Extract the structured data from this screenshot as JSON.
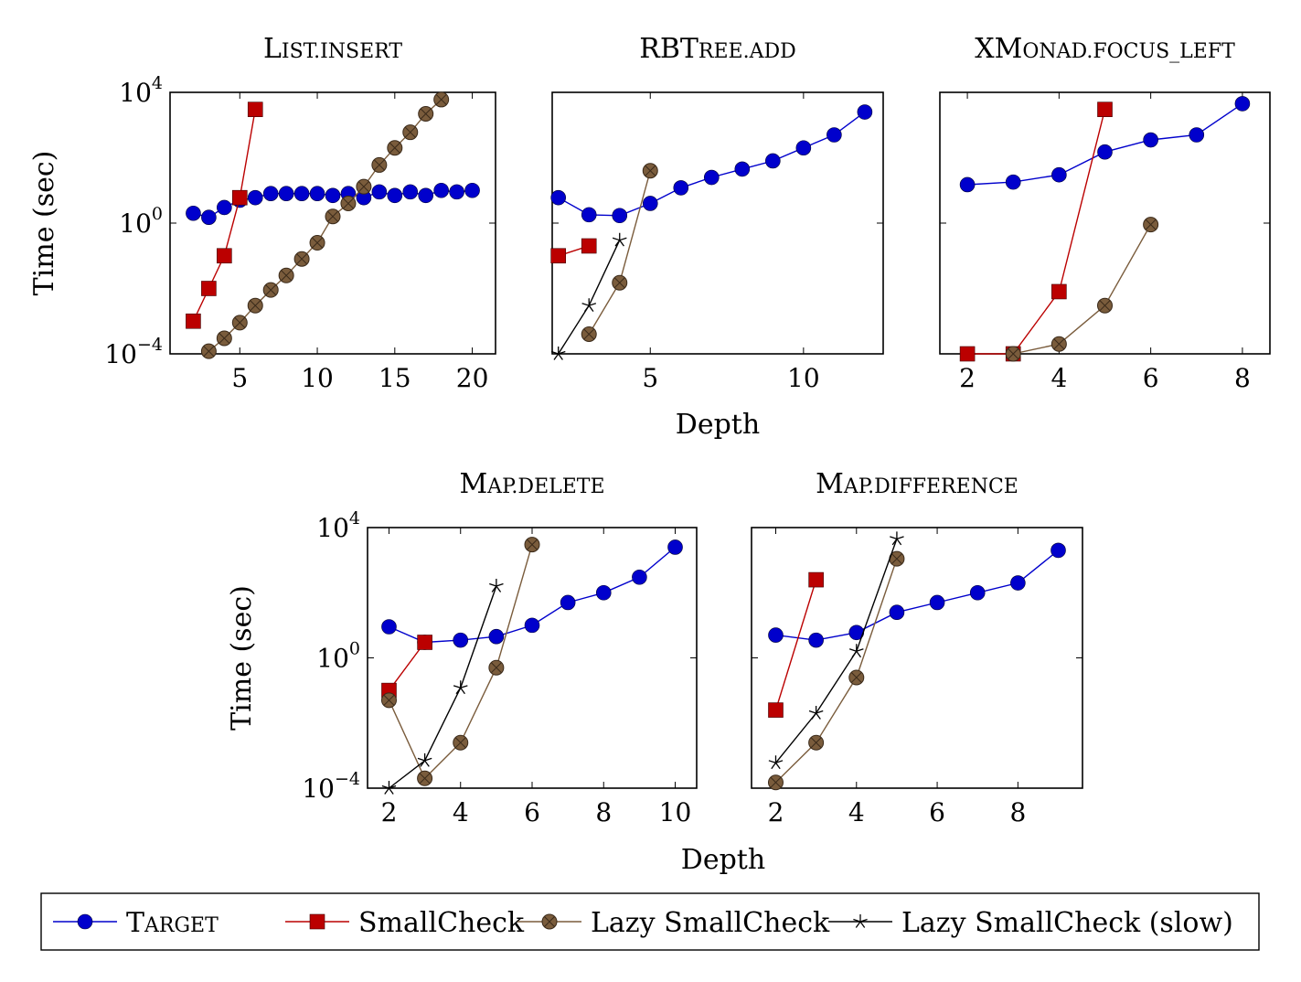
{
  "series_styles": [
    {
      "name": "Target",
      "color": "#0000cc",
      "marker": "circle"
    },
    {
      "name": "SmallCheck",
      "color": "#bb0000",
      "marker": "square"
    },
    {
      "name": "Lazy SmallCheck",
      "color": "#7a5c3c",
      "marker": "xcircle"
    },
    {
      "name": "Lazy SmallCheck (slow)",
      "color": "#000000",
      "marker": "star"
    }
  ],
  "legend": {
    "placement": "bottom",
    "entries": [
      "Target",
      "SmallCheck",
      "Lazy SmallCheck",
      "Lazy SmallCheck (slow)"
    ]
  },
  "chart_data": [
    {
      "type": "line",
      "title": "List.insert",
      "xlabel": "",
      "ylabel": "Time (sec)",
      "y_scale": "log",
      "xlim": [
        0.5,
        21.5
      ],
      "ylim": [
        0.0001,
        10000
      ],
      "xticks": [
        5,
        10,
        15,
        20
      ],
      "yticks": [
        {
          "value": 0.0001,
          "base": "10",
          "exp": "−4"
        },
        {
          "value": 1,
          "base": "10",
          "exp": "0"
        },
        {
          "value": 10000,
          "base": "10",
          "exp": "4"
        }
      ],
      "series": [
        {
          "name": "Target",
          "x": [
            2,
            3,
            4,
            5,
            6,
            7,
            8,
            9,
            10,
            11,
            12,
            13,
            14,
            15,
            16,
            17,
            18,
            19,
            20
          ],
          "y": [
            2,
            1.5,
            3,
            5,
            6,
            8,
            8,
            8,
            8,
            7,
            8,
            6,
            9,
            7,
            9,
            7,
            10,
            9,
            10
          ]
        },
        {
          "name": "SmallCheck",
          "x": [
            2,
            3,
            4,
            5,
            6
          ],
          "y": [
            0.001,
            0.01,
            0.1,
            6,
            3000
          ]
        },
        {
          "name": "Lazy SmallCheck",
          "x": [
            3,
            4,
            5,
            6,
            7,
            8,
            9,
            10,
            11,
            12,
            13,
            14,
            15,
            16,
            17,
            18
          ],
          "y": [
            0.00012,
            0.0003,
            0.0009,
            0.003,
            0.009,
            0.025,
            0.08,
            0.25,
            1.6,
            4,
            13,
            60,
            200,
            600,
            2200,
            6000
          ]
        }
      ]
    },
    {
      "type": "line",
      "title": "RBTree.add",
      "xlabel": "",
      "ylabel": "",
      "y_scale": "log",
      "xlim": [
        1.8,
        12.6
      ],
      "ylim": [
        0.0001,
        10000
      ],
      "xticks": [
        5,
        10
      ],
      "yticks": [
        {
          "value": 0.0001,
          "base": "",
          "exp": ""
        },
        {
          "value": 1,
          "base": "",
          "exp": ""
        },
        {
          "value": 10000,
          "base": "",
          "exp": ""
        }
      ],
      "series": [
        {
          "name": "Target",
          "x": [
            2,
            3,
            4,
            5,
            6,
            7,
            8,
            9,
            10,
            11,
            12
          ],
          "y": [
            6,
            1.8,
            1.7,
            4,
            12,
            25,
            45,
            80,
            200,
            500,
            2500
          ]
        },
        {
          "name": "SmallCheck",
          "x": [
            2,
            3
          ],
          "y": [
            0.1,
            0.2
          ]
        },
        {
          "name": "Lazy SmallCheck",
          "x": [
            3,
            4,
            5
          ],
          "y": [
            0.0004,
            0.015,
            40
          ]
        },
        {
          "name": "Lazy SmallCheck (slow)",
          "x": [
            2,
            3,
            4
          ],
          "y": [
            0.0001,
            0.003,
            0.3
          ]
        }
      ]
    },
    {
      "type": "line",
      "title": "XMonad.focus_left",
      "xlabel": "",
      "ylabel": "",
      "y_scale": "log",
      "xlim": [
        1.4,
        8.6
      ],
      "ylim": [
        0.0001,
        10000
      ],
      "xticks": [
        2,
        4,
        6,
        8
      ],
      "yticks": [
        {
          "value": 0.0001,
          "base": "",
          "exp": ""
        },
        {
          "value": 1,
          "base": "",
          "exp": ""
        },
        {
          "value": 10000,
          "base": "",
          "exp": ""
        }
      ],
      "series": [
        {
          "name": "Target",
          "x": [
            2,
            3,
            4,
            5,
            6,
            7,
            8
          ],
          "y": [
            15,
            18,
            30,
            150,
            350,
            500,
            4500
          ]
        },
        {
          "name": "SmallCheck",
          "x": [
            2,
            3,
            4,
            5
          ],
          "y": [
            0.0001,
            0.0001,
            0.008,
            3000
          ]
        },
        {
          "name": "Lazy SmallCheck",
          "x": [
            3,
            4,
            5,
            6
          ],
          "y": [
            0.0001,
            0.0002,
            0.003,
            0.9
          ]
        }
      ]
    },
    {
      "type": "line",
      "title": "Map.delete",
      "xlabel": "Depth",
      "ylabel": "Time (sec)",
      "y_scale": "log",
      "xlim": [
        1.4,
        10.6
      ],
      "ylim": [
        0.0001,
        10000
      ],
      "xticks": [
        2,
        4,
        6,
        8,
        10
      ],
      "yticks": [
        {
          "value": 0.0001,
          "base": "10",
          "exp": "−4"
        },
        {
          "value": 1,
          "base": "10",
          "exp": "0"
        },
        {
          "value": 10000,
          "base": "10",
          "exp": "4"
        }
      ],
      "series": [
        {
          "name": "Target",
          "x": [
            2,
            3,
            4,
            5,
            6,
            7,
            8,
            9,
            10
          ],
          "y": [
            9,
            3,
            3.5,
            4.5,
            10,
            50,
            100,
            300,
            2500
          ]
        },
        {
          "name": "SmallCheck",
          "x": [
            2,
            3
          ],
          "y": [
            0.1,
            3
          ]
        },
        {
          "name": "Lazy SmallCheck",
          "x": [
            2,
            3,
            4,
            5,
            6
          ],
          "y": [
            0.05,
            0.0002,
            0.0025,
            0.5,
            3000
          ]
        },
        {
          "name": "Lazy SmallCheck (slow)",
          "x": [
            2,
            3,
            4,
            5
          ],
          "y": [
            0.0001,
            0.0007,
            0.12,
            160
          ]
        }
      ]
    },
    {
      "type": "line",
      "title": "Map.difference",
      "xlabel": "",
      "ylabel": "",
      "y_scale": "log",
      "xlim": [
        1.4,
        9.6
      ],
      "ylim": [
        0.0001,
        10000
      ],
      "xticks": [
        2,
        4,
        6,
        8
      ],
      "yticks": [
        {
          "value": 0.0001,
          "base": "",
          "exp": ""
        },
        {
          "value": 1,
          "base": "",
          "exp": ""
        },
        {
          "value": 10000,
          "base": "",
          "exp": ""
        }
      ],
      "series": [
        {
          "name": "Target",
          "x": [
            2,
            3,
            4,
            5,
            6,
            7,
            8,
            9
          ],
          "y": [
            5,
            3.5,
            6,
            25,
            50,
            100,
            200,
            2000
          ]
        },
        {
          "name": "SmallCheck",
          "x": [
            2,
            3
          ],
          "y": [
            0.025,
            250
          ]
        },
        {
          "name": "Lazy SmallCheck",
          "x": [
            2,
            3,
            4,
            5
          ],
          "y": [
            0.00015,
            0.0025,
            0.25,
            1100
          ]
        },
        {
          "name": "Lazy SmallCheck (slow)",
          "x": [
            2,
            3,
            4,
            5
          ],
          "y": [
            0.0006,
            0.02,
            1.6,
            4500
          ]
        }
      ]
    }
  ]
}
